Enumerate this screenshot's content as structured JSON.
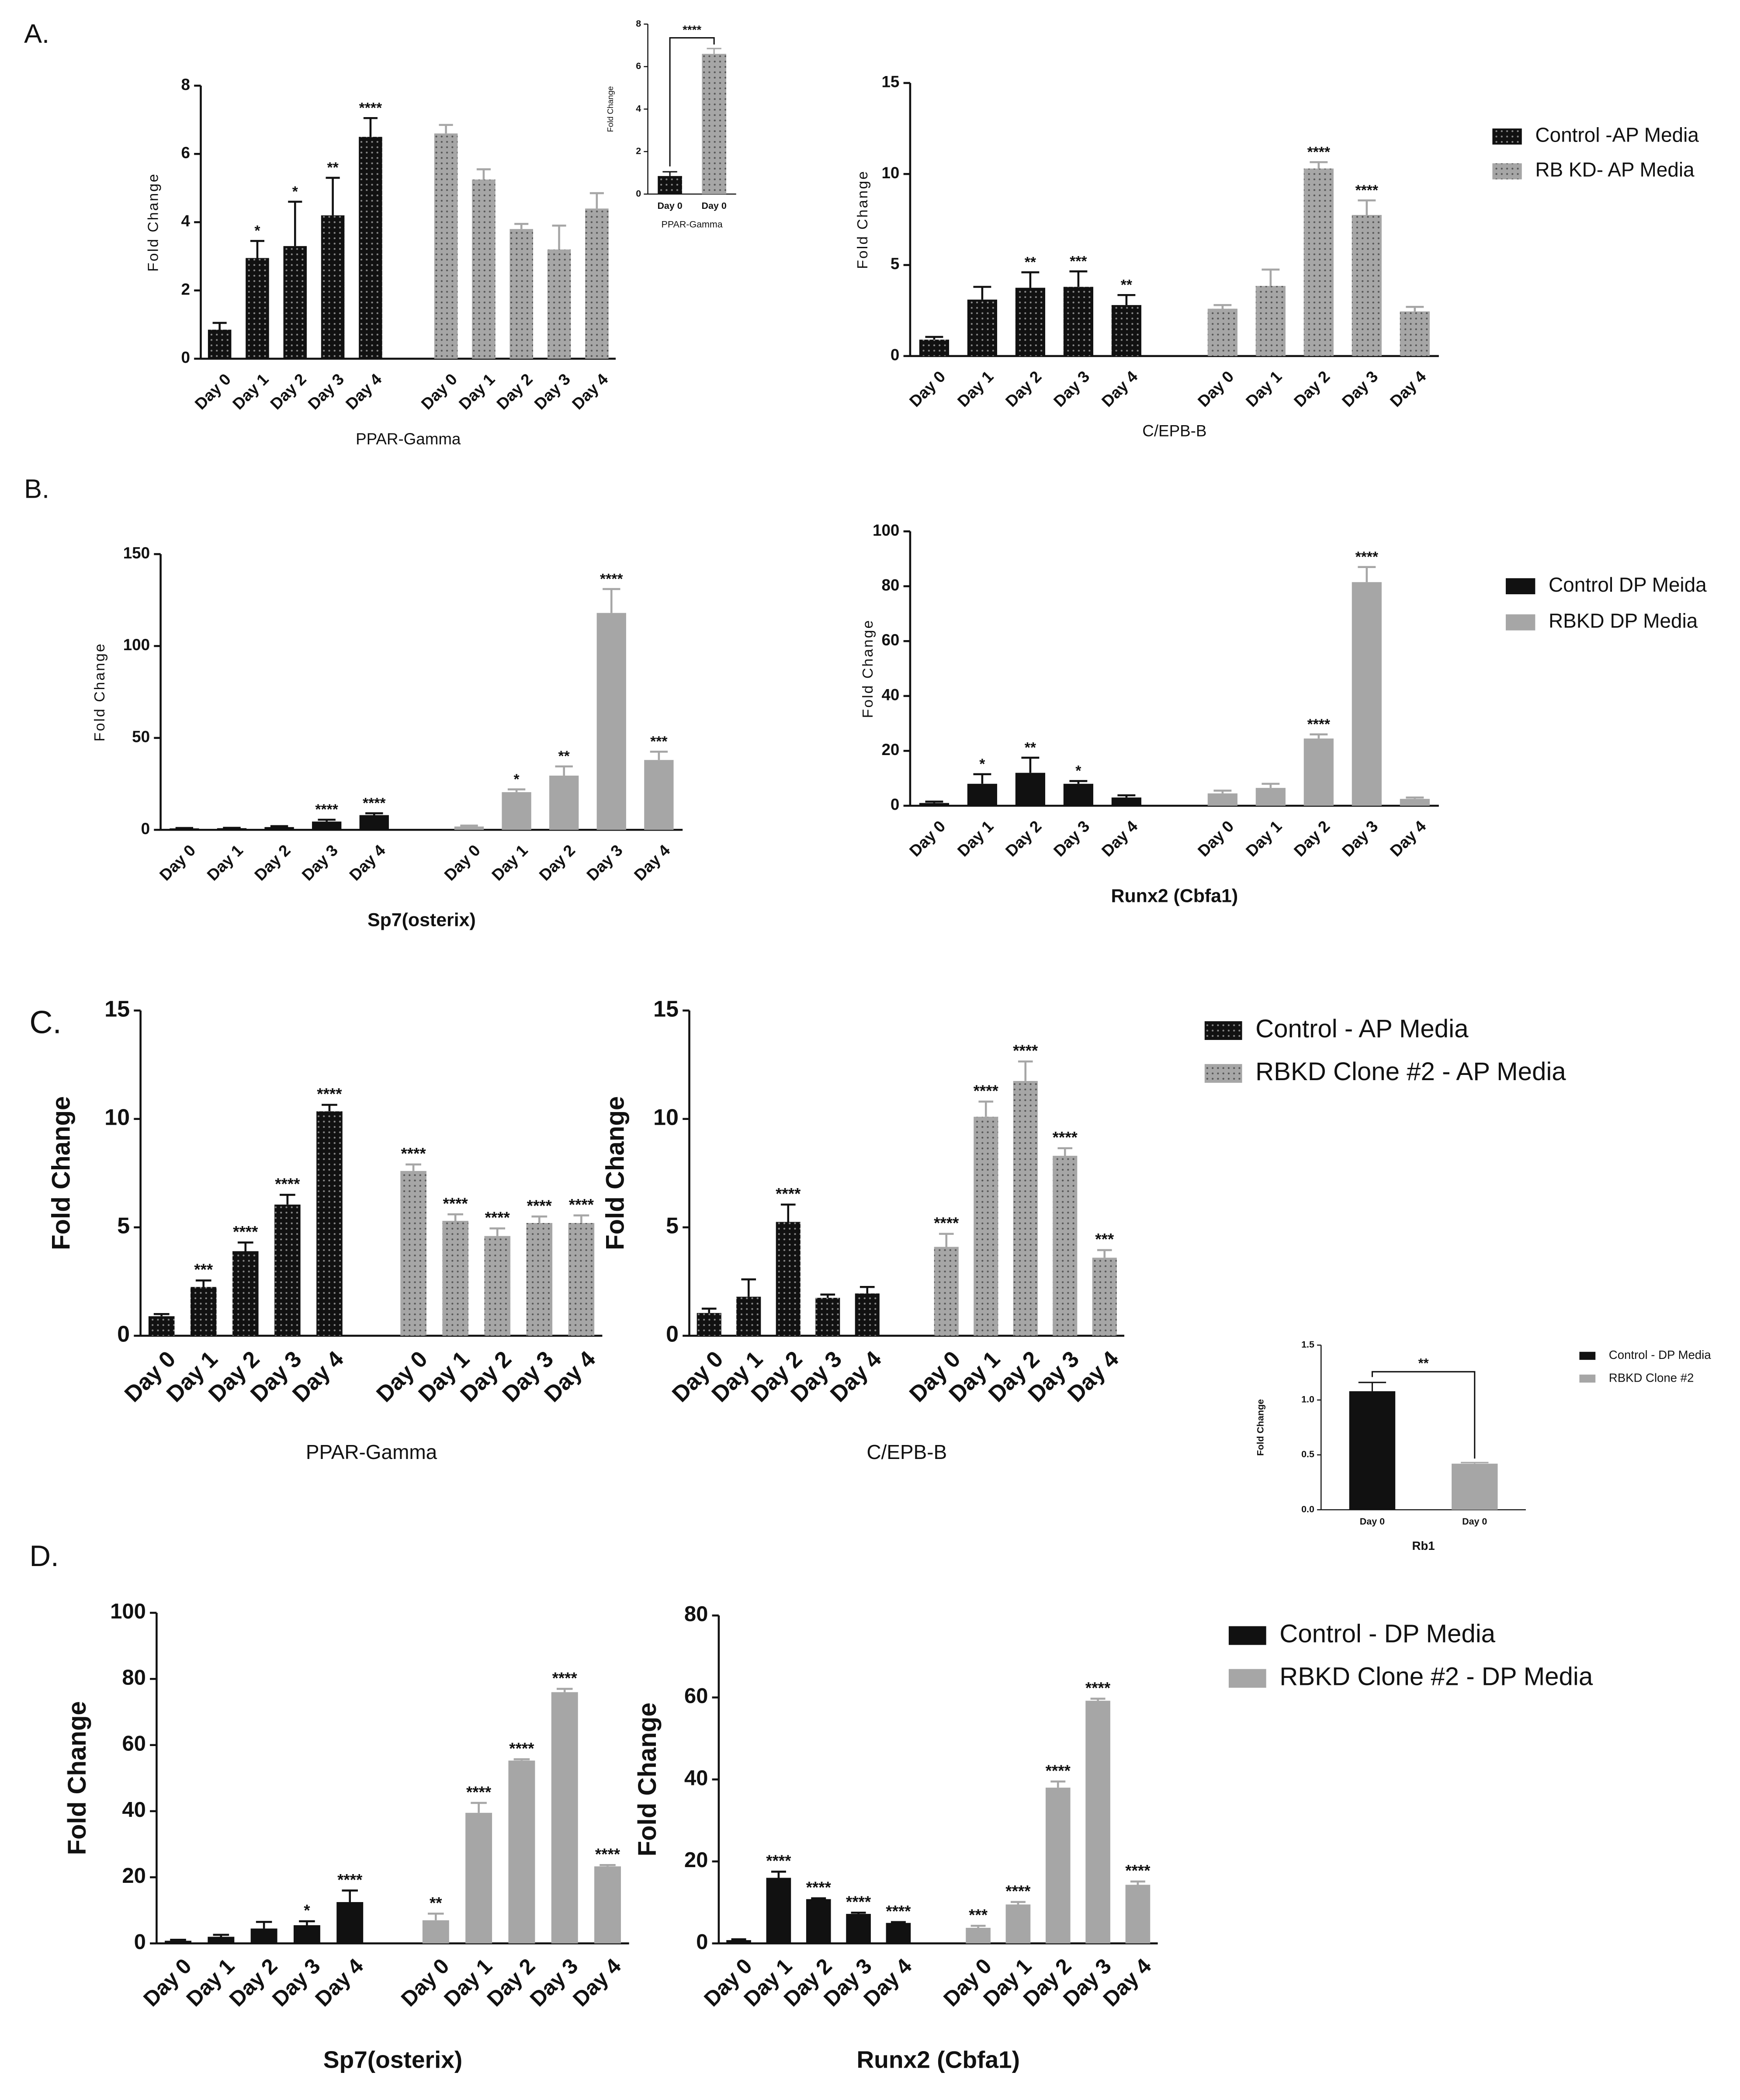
{
  "panel_labels": [
    "A.",
    "B.",
    "C.",
    "D."
  ],
  "chart_data": [
    {
      "type": "bar",
      "x_label": "PPAR-Gamma",
      "y_label": "Fold Change",
      "ylim": [
        0,
        8
      ],
      "yticks": [
        0,
        2,
        4,
        6,
        8
      ],
      "categories": [
        "Day 0",
        "Day 1",
        "Day 2",
        "Day 3",
        "Day 4",
        "Day 0",
        "Day 1",
        "Day 2",
        "Day 3",
        "Day 4"
      ],
      "series": [
        {
          "color": "#111111",
          "hatch": "dots",
          "values": [
            0.85,
            2.95,
            3.3,
            4.2,
            6.5,
            null,
            null,
            null,
            null,
            null
          ],
          "errors": [
            0.2,
            0.5,
            1.3,
            1.1,
            0.55,
            null,
            null,
            null,
            null,
            null
          ],
          "annotations": [
            null,
            "*",
            "*",
            "**",
            "****",
            null,
            null,
            null,
            null,
            null
          ]
        },
        {
          "color": "#a6a6a6",
          "hatch": "dots",
          "values": [
            null,
            null,
            null,
            null,
            null,
            6.6,
            5.25,
            3.8,
            3.2,
            4.4
          ],
          "errors": [
            null,
            null,
            null,
            null,
            null,
            0.25,
            0.3,
            0.15,
            0.7,
            0.45
          ]
        }
      ]
    },
    {
      "type": "bar",
      "x_label": "PPAR-Gamma",
      "y_label": "Fold Change",
      "ylim": [
        0,
        8
      ],
      "yticks": [
        0,
        2,
        4,
        6,
        8
      ],
      "bracket_label": "****",
      "categories": [
        "Day 0",
        "Day 0"
      ],
      "series": [
        {
          "color": "#111111",
          "hatch": "dots",
          "values": [
            0.85,
            null
          ],
          "errors": [
            0.2,
            null
          ]
        },
        {
          "color": "#a6a6a6",
          "hatch": "dots",
          "values": [
            null,
            6.6
          ],
          "errors": [
            null,
            0.25
          ]
        }
      ]
    },
    {
      "type": "bar",
      "x_label": "C/EPB-B",
      "y_label": "Fold Change",
      "ylim": [
        0,
        15
      ],
      "yticks": [
        0,
        5,
        10,
        15
      ],
      "categories": [
        "Day 0",
        "Day 1",
        "Day 2",
        "Day 3",
        "Day 4",
        "Day 0",
        "Day 1",
        "Day 2",
        "Day 3",
        "Day 4"
      ],
      "series": [
        {
          "name": "Control -AP Media",
          "color": "#111111",
          "hatch": "dots",
          "values": [
            0.9,
            3.1,
            3.75,
            3.8,
            2.8,
            null,
            null,
            null,
            null,
            null
          ],
          "errors": [
            0.15,
            0.7,
            0.85,
            0.85,
            0.55,
            null,
            null,
            null,
            null,
            null
          ],
          "annotations": [
            null,
            null,
            "**",
            "***",
            "**",
            null,
            null,
            null,
            null,
            null
          ]
        },
        {
          "name": "RB KD- AP Media",
          "color": "#a6a6a6",
          "hatch": "dots",
          "values": [
            null,
            null,
            null,
            null,
            null,
            2.6,
            3.85,
            10.3,
            7.75,
            2.45
          ],
          "errors": [
            null,
            null,
            null,
            null,
            null,
            0.2,
            0.9,
            0.35,
            0.8,
            0.25
          ],
          "annotations": [
            null,
            null,
            null,
            null,
            null,
            null,
            null,
            "****",
            "****",
            null
          ]
        }
      ]
    },
    {
      "type": "bar",
      "x_label": "Sp7(osterix)",
      "y_label": "Fold Change",
      "ylim": [
        0,
        150
      ],
      "yticks": [
        0,
        50,
        100,
        150
      ],
      "categories": [
        "Day 0",
        "Day 1",
        "Day 2",
        "Day 3",
        "Day 4",
        "Day 0",
        "Day 1",
        "Day 2",
        "Day 3",
        "Day 4"
      ],
      "series": [
        {
          "color": "#111111",
          "values": [
            0.8,
            0.9,
            1.5,
            4.5,
            8,
            null,
            null,
            null,
            null,
            null
          ],
          "errors": [
            0.2,
            0.2,
            0.5,
            1,
            1,
            null,
            null,
            null,
            null,
            null
          ],
          "annotations": [
            null,
            null,
            null,
            "****",
            "****",
            null,
            null,
            null,
            null,
            null
          ]
        },
        {
          "color": "#a6a6a6",
          "values": [
            null,
            null,
            null,
            null,
            null,
            1.8,
            20.5,
            29.5,
            118,
            38
          ],
          "errors": [
            null,
            null,
            null,
            null,
            null,
            0.5,
            1.5,
            5,
            13,
            4.5
          ],
          "annotations": [
            null,
            null,
            null,
            null,
            null,
            null,
            "*",
            "**",
            "****",
            "***"
          ]
        }
      ]
    },
    {
      "type": "bar",
      "x_label": "Runx2 (Cbfa1)",
      "y_label": "Fold Change",
      "ylim": [
        0,
        100
      ],
      "yticks": [
        0,
        20,
        40,
        60,
        80,
        100
      ],
      "categories": [
        "Day 0",
        "Day 1",
        "Day 2",
        "Day 3",
        "Day 4",
        "Day 0",
        "Day 1",
        "Day 2",
        "Day 3",
        "Day 4"
      ],
      "series": [
        {
          "name": "Control DP Meida",
          "color": "#111111",
          "values": [
            1,
            8,
            12,
            8,
            3,
            null,
            null,
            null,
            null,
            null
          ],
          "errors": [
            0.5,
            3.5,
            5.5,
            1,
            0.8,
            null,
            null,
            null,
            null,
            null
          ],
          "annotations": [
            null,
            "*",
            "**",
            "*",
            null,
            null,
            null,
            null,
            null,
            null
          ]
        },
        {
          "name": "RBKD DP Media",
          "color": "#a6a6a6",
          "values": [
            null,
            null,
            null,
            null,
            null,
            4.5,
            6.5,
            24.5,
            81.5,
            2.5
          ],
          "errors": [
            null,
            null,
            null,
            null,
            null,
            1,
            1.5,
            1.5,
            5.5,
            0.5
          ],
          "annotations": [
            null,
            null,
            null,
            null,
            null,
            null,
            null,
            "****",
            "****",
            null
          ]
        }
      ]
    },
    {
      "type": "bar",
      "x_label": "PPAR-Gamma",
      "y_label": "Fold Change",
      "ylim": [
        0,
        15
      ],
      "yticks": [
        0,
        5,
        10,
        15
      ],
      "categories": [
        "Day 0",
        "Day 1",
        "Day 2",
        "Day 3",
        "Day 4",
        "Day 0",
        "Day 1",
        "Day 2",
        "Day 3",
        "Day 4"
      ],
      "series": [
        {
          "color": "#111111",
          "hatch": "dots",
          "values": [
            0.9,
            2.25,
            3.9,
            6.05,
            10.35,
            null,
            null,
            null,
            null,
            null
          ],
          "errors": [
            0.1,
            0.3,
            0.4,
            0.45,
            0.3,
            null,
            null,
            null,
            null,
            null
          ],
          "annotations": [
            null,
            "***",
            "****",
            "****",
            "****",
            null,
            null,
            null,
            null,
            null
          ]
        },
        {
          "color": "#a6a6a6",
          "hatch": "dots",
          "values": [
            null,
            null,
            null,
            null,
            null,
            7.6,
            5.3,
            4.6,
            5.2,
            5.2
          ],
          "errors": [
            null,
            null,
            null,
            null,
            null,
            0.3,
            0.3,
            0.35,
            0.3,
            0.35
          ],
          "annotations": [
            null,
            null,
            null,
            null,
            null,
            "****",
            "****",
            "****",
            "****",
            "****"
          ]
        }
      ]
    },
    {
      "type": "bar",
      "x_label": "C/EPB-B",
      "y_label": "Fold Change",
      "ylim": [
        0,
        15
      ],
      "yticks": [
        0,
        5,
        10,
        15
      ],
      "categories": [
        "Day 0",
        "Day 1",
        "Day 2",
        "Day 3",
        "Day 4",
        "Day 0",
        "Day 1",
        "Day 2",
        "Day 3",
        "Day 4"
      ],
      "series": [
        {
          "name": "Control - AP Media",
          "color": "#111111",
          "hatch": "dots",
          "values": [
            1.05,
            1.8,
            5.25,
            1.75,
            1.95,
            null,
            null,
            null,
            null,
            null
          ],
          "errors": [
            0.2,
            0.8,
            0.8,
            0.15,
            0.3,
            null,
            null,
            null,
            null,
            null
          ],
          "annotations": [
            null,
            null,
            "****",
            null,
            null,
            null,
            null,
            null,
            null,
            null
          ]
        },
        {
          "name": "RBKD Clone #2 - AP Media",
          "color": "#a6a6a6",
          "hatch": "dots",
          "values": [
            null,
            null,
            null,
            null,
            null,
            4.1,
            10.1,
            11.75,
            8.3,
            3.6
          ],
          "errors": [
            null,
            null,
            null,
            null,
            null,
            0.6,
            0.7,
            0.9,
            0.35,
            0.35
          ],
          "annotations": [
            null,
            null,
            null,
            null,
            null,
            "****",
            "****",
            "****",
            "****",
            "***"
          ]
        }
      ]
    },
    {
      "type": "bar",
      "x_label": "Rb1",
      "y_label": "Fold Change",
      "ylim": [
        0,
        1.5
      ],
      "yticks": [
        {
          "value": 0,
          "label": "0.0"
        },
        {
          "value": 0.5,
          "label": "0.5"
        },
        {
          "value": 1,
          "label": "1.0"
        },
        {
          "value": 1.5,
          "label": "1.5"
        }
      ],
      "bracket_label": "**",
      "categories": [
        "Day 0",
        "Day 0"
      ],
      "series": [
        {
          "name": "Control - DP Media",
          "color": "#111111",
          "values": [
            1.08,
            null
          ],
          "errors": [
            0.08,
            null
          ]
        },
        {
          "name": "RBKD Clone #2",
          "color": "#a6a6a6",
          "values": [
            null,
            0.42
          ],
          "errors": [
            null,
            0.01
          ]
        }
      ]
    },
    {
      "type": "bar",
      "x_label": "Sp7(osterix)",
      "y_label": "Fold Change",
      "ylim": [
        0,
        100
      ],
      "yticks": [
        0,
        20,
        40,
        60,
        80,
        100
      ],
      "categories": [
        "Day 0",
        "Day 1",
        "Day 2",
        "Day 3",
        "Day 4",
        "Day 0",
        "Day 1",
        "Day 2",
        "Day 3",
        "Day 4"
      ],
      "series": [
        {
          "color": "#111111",
          "values": [
            0.8,
            2,
            4.5,
            5.5,
            12.5,
            null,
            null,
            null,
            null,
            null
          ],
          "errors": [
            0.3,
            0.6,
            2,
            1.2,
            3.5,
            null,
            null,
            null,
            null,
            null
          ],
          "annotations": [
            null,
            null,
            null,
            "*",
            "****",
            null,
            null,
            null,
            null,
            null
          ]
        },
        {
          "color": "#a6a6a6",
          "values": [
            null,
            null,
            null,
            null,
            null,
            7,
            39.5,
            55.3,
            76,
            23.3
          ],
          "errors": [
            null,
            null,
            null,
            null,
            null,
            2,
            3,
            0.4,
            1,
            0.4
          ],
          "annotations": [
            null,
            null,
            null,
            null,
            null,
            "**",
            "****",
            "****",
            "****",
            "****"
          ]
        }
      ]
    },
    {
      "type": "bar",
      "x_label": "Runx2 (Cbfa1)",
      "y_label": "Fold Change",
      "ylim": [
        0,
        80
      ],
      "yticks": [
        0,
        20,
        40,
        60,
        80
      ],
      "categories": [
        "Day 0",
        "Day 1",
        "Day 2",
        "Day 3",
        "Day 4",
        "Day 0",
        "Day 1",
        "Day 2",
        "Day 3",
        "Day 4"
      ],
      "series": [
        {
          "name": "Control - DP Media",
          "color": "#111111",
          "values": [
            0.8,
            16,
            10.8,
            7.2,
            5,
            null,
            null,
            null,
            null,
            null
          ],
          "errors": [
            0.2,
            1.5,
            0.2,
            0.3,
            0.2,
            null,
            null,
            null,
            null,
            null
          ],
          "annotations": [
            null,
            "****",
            "****",
            "****",
            "****",
            null,
            null,
            null,
            null,
            null
          ]
        },
        {
          "name": "RBKD Clone #2 - DP Media",
          "color": "#a6a6a6",
          "values": [
            null,
            null,
            null,
            null,
            null,
            3.8,
            9.5,
            38,
            59.2,
            14.3
          ],
          "errors": [
            null,
            null,
            null,
            null,
            null,
            0.5,
            0.6,
            1.5,
            0.5,
            0.8
          ],
          "annotations": [
            null,
            null,
            null,
            null,
            null,
            "***",
            "****",
            "****",
            "****",
            "****"
          ]
        }
      ]
    }
  ]
}
